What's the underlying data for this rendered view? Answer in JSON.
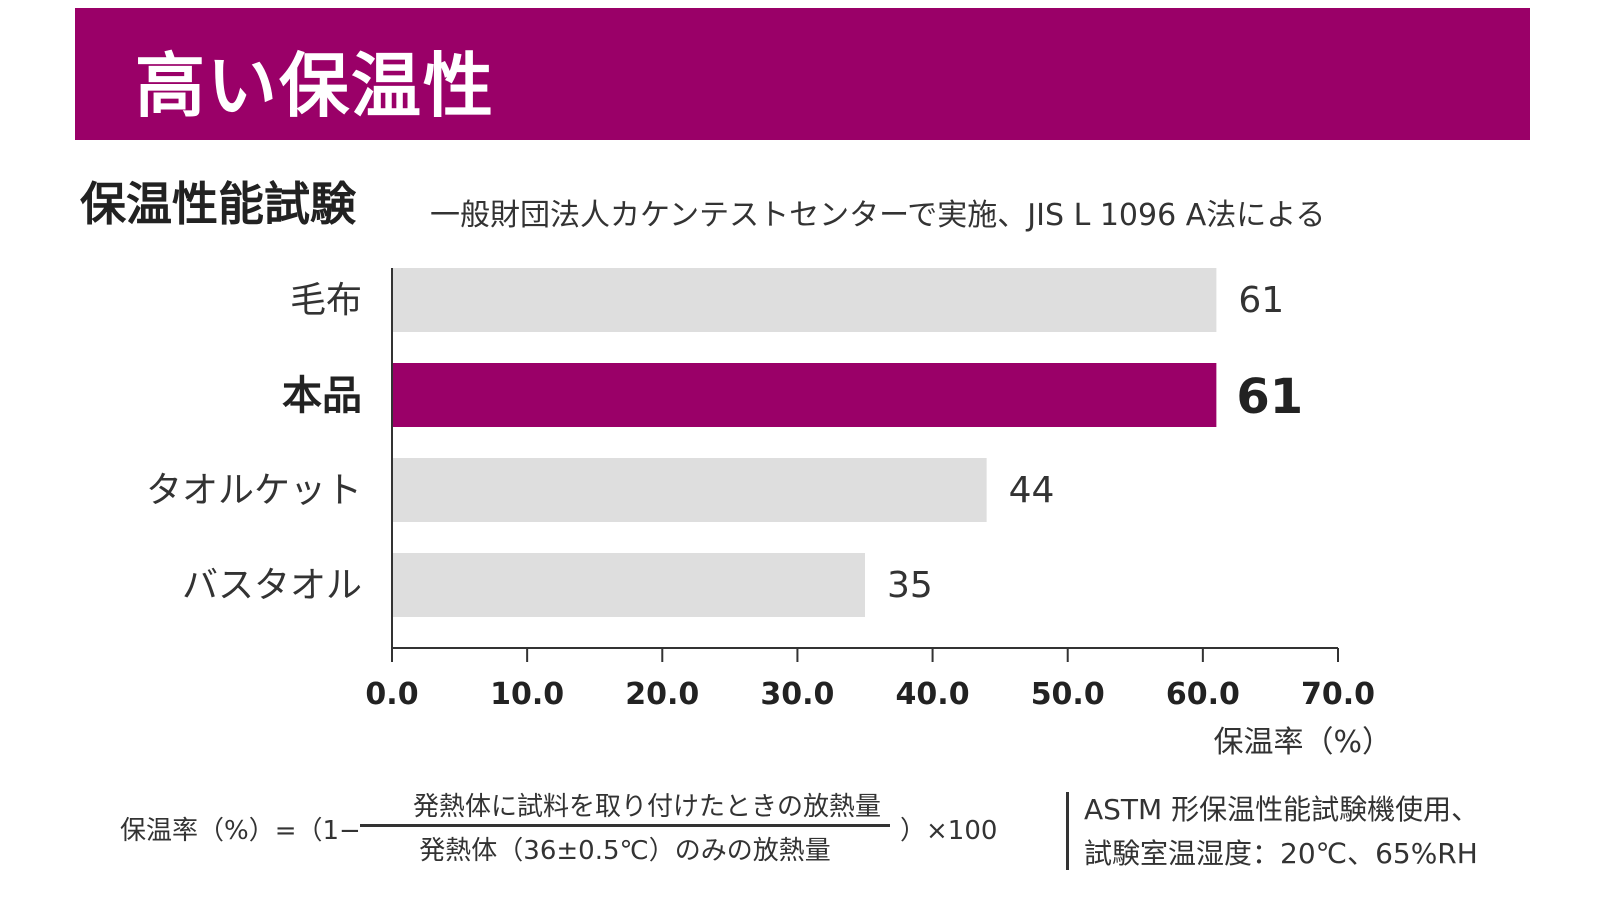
{
  "header": {
    "banner_title": "高い保温性",
    "section_title": "保温性能試験",
    "section_subtitle": "一般財団法人カケンテストセンターで実施、JIS L 1096 A法による"
  },
  "colors": {
    "highlight": "#9a0068",
    "bar_default": "#dedede"
  },
  "chart_data": {
    "type": "bar",
    "orientation": "horizontal",
    "categories": [
      "毛布",
      "本品",
      "タオルケット",
      "バスタオル"
    ],
    "values": [
      61,
      61,
      44,
      35
    ],
    "value_labels": [
      "61",
      "61",
      "44",
      "35"
    ],
    "highlight_category": "本品",
    "xlabel": "保温率（%）",
    "ylabel": "",
    "xlim": [
      0,
      70
    ],
    "xticks": [
      "0.0",
      "10.0",
      "20.0",
      "30.0",
      "40.0",
      "50.0",
      "60.0",
      "70.0"
    ],
    "grid": false
  },
  "footer": {
    "formula_lhs": "保温率（%）=（1−",
    "formula_numerator": "発熱体に試料を取り付けたときの放熱量",
    "formula_denominator": "発熱体（36±0.5℃）のみの放熱量",
    "formula_rhs": "）×100",
    "note_line1": "ASTM 形保温性能試験機使用、",
    "note_line2": "試験室温湿度：20℃、65%RH"
  }
}
